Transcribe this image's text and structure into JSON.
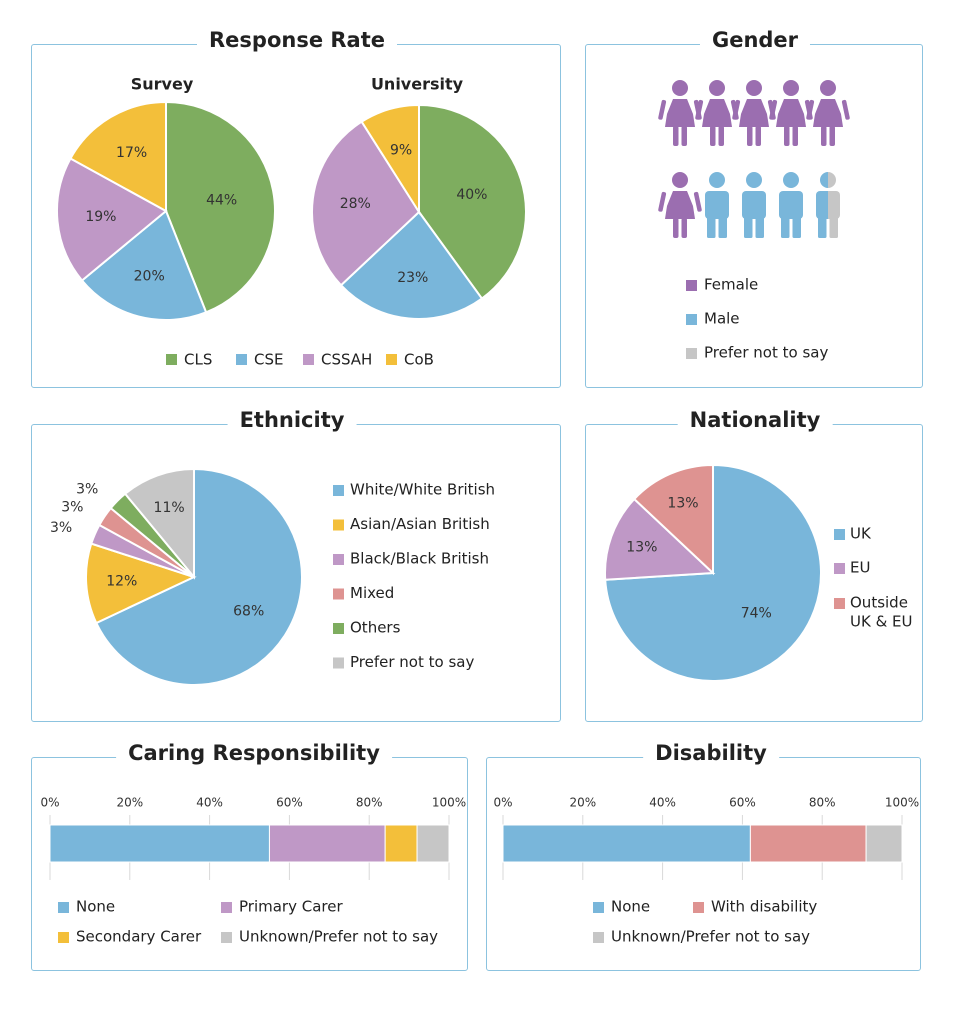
{
  "titles": {
    "response_rate": "Response Rate",
    "gender": "Gender",
    "ethnicity": "Ethnicity",
    "nationality": "Nationality",
    "caring": "Caring Responsibility",
    "disability": "Disability"
  },
  "colors": {
    "green": "#7ead5f",
    "blue": "#79b6da",
    "purple": "#bf98c6",
    "yellow": "#f3bf3a",
    "pink": "#de9391",
    "gray": "#c6c6c6",
    "dark_purple": "#9b6eb0",
    "border": "#8cc3df"
  },
  "chart_data": [
    {
      "id": "survey",
      "type": "pie",
      "title": "Survey",
      "categories": [
        "CLS",
        "CSE",
        "CSSAH",
        "CoB"
      ],
      "values": [
        44,
        20,
        19,
        17
      ],
      "labels": [
        "44%",
        "20%",
        "19%",
        "17%"
      ],
      "colors": [
        "#7ead5f",
        "#79b6da",
        "#bf98c6",
        "#f3bf3a"
      ]
    },
    {
      "id": "university",
      "type": "pie",
      "title": "University",
      "categories": [
        "CLS",
        "CSE",
        "CSSAH",
        "CoB"
      ],
      "values": [
        40,
        23,
        28,
        9
      ],
      "labels": [
        "40%",
        "23%",
        "28%",
        "9%"
      ],
      "colors": [
        "#7ead5f",
        "#79b6da",
        "#bf98c6",
        "#f3bf3a"
      ]
    },
    {
      "id": "response_legend",
      "type": "legend",
      "entries": [
        "CLS",
        "CSE",
        "CSSAH",
        "CoB"
      ],
      "colors": [
        "#7ead5f",
        "#79b6da",
        "#bf98c6",
        "#f3bf3a"
      ]
    },
    {
      "id": "gender",
      "type": "pictogram",
      "icons_total": 10,
      "female": 6,
      "male": 3.5,
      "prefer_not_to_say": 0.5,
      "legend": [
        "Female",
        "Male",
        "Prefer not to say"
      ],
      "colors": [
        "#9b6eb0",
        "#79b6da",
        "#c6c6c6"
      ]
    },
    {
      "id": "ethnicity",
      "type": "pie",
      "categories": [
        "White/White British",
        "Asian/Asian British",
        "Black/Black British",
        "Mixed",
        "Others",
        "Prefer not to say"
      ],
      "values": [
        68,
        12,
        3,
        3,
        3,
        11
      ],
      "labels": [
        "68%",
        "12%",
        "3%",
        "3%",
        "3%",
        "11%"
      ],
      "colors": [
        "#79b6da",
        "#f3bf3a",
        "#bf98c6",
        "#de9391",
        "#7ead5f",
        "#c6c6c6"
      ]
    },
    {
      "id": "nationality",
      "type": "pie",
      "categories": [
        "UK",
        "EU",
        "Outside UK & EU"
      ],
      "values": [
        74,
        13,
        13
      ],
      "labels": [
        "74%",
        "13%",
        "13%"
      ],
      "legend": [
        "UK",
        "EU",
        "Outside\nUK & EU"
      ],
      "colors": [
        "#79b6da",
        "#bf98c6",
        "#de9391"
      ]
    },
    {
      "id": "caring",
      "type": "bar",
      "orientation": "horizontal-stacked",
      "categories": [
        "None",
        "Primary Carer",
        "Secondary Carer",
        "Unknown/Prefer not to say"
      ],
      "values": [
        55,
        29,
        8,
        8
      ],
      "xlim": [
        0,
        100
      ],
      "ticks": [
        "0%",
        "20%",
        "40%",
        "60%",
        "80%",
        "100%"
      ],
      "colors": [
        "#79b6da",
        "#bf98c6",
        "#f3bf3a",
        "#c6c6c6"
      ]
    },
    {
      "id": "disability",
      "type": "bar",
      "orientation": "horizontal-stacked",
      "categories": [
        "None",
        "With disability",
        "Unknown/Prefer not to say"
      ],
      "values": [
        62,
        29,
        9
      ],
      "xlim": [
        0,
        100
      ],
      "ticks": [
        "0%",
        "20%",
        "40%",
        "60%",
        "80%",
        "100%"
      ],
      "colors": [
        "#79b6da",
        "#de9391",
        "#c6c6c6"
      ]
    }
  ]
}
